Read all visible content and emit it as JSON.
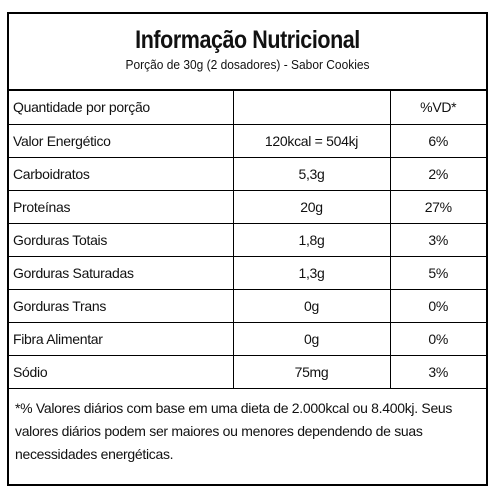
{
  "header": {
    "title": "Informação Nutricional",
    "subtitle": "Porção de 30g (2 dosadores) - Sabor Cookies"
  },
  "table": {
    "header_row": {
      "label": "Quantidade por porção",
      "value": "",
      "dv": "%VD*"
    },
    "rows": [
      {
        "label": "Valor Energético",
        "value": "120kcal = 504kj",
        "dv": "6%"
      },
      {
        "label": "Carboidratos",
        "value": "5,3g",
        "dv": "2%"
      },
      {
        "label": "Proteínas",
        "value": "20g",
        "dv": "27%"
      },
      {
        "label": "Gorduras Totais",
        "value": "1,8g",
        "dv": "3%"
      },
      {
        "label": "Gorduras Saturadas",
        "value": "1,3g",
        "dv": "5%"
      },
      {
        "label": "Gorduras Trans",
        "value": "0g",
        "dv": "0%"
      },
      {
        "label": "Fibra Alimentar",
        "value": "0g",
        "dv": "0%"
      },
      {
        "label": "Sódio",
        "value": "75mg",
        "dv": "3%"
      }
    ]
  },
  "footnote": "*% Valores diários com base em uma dieta de 2.000kcal ou 8.400kj. Seus valores diários podem ser maiores ou menores dependendo de suas necessidades energéticas."
}
